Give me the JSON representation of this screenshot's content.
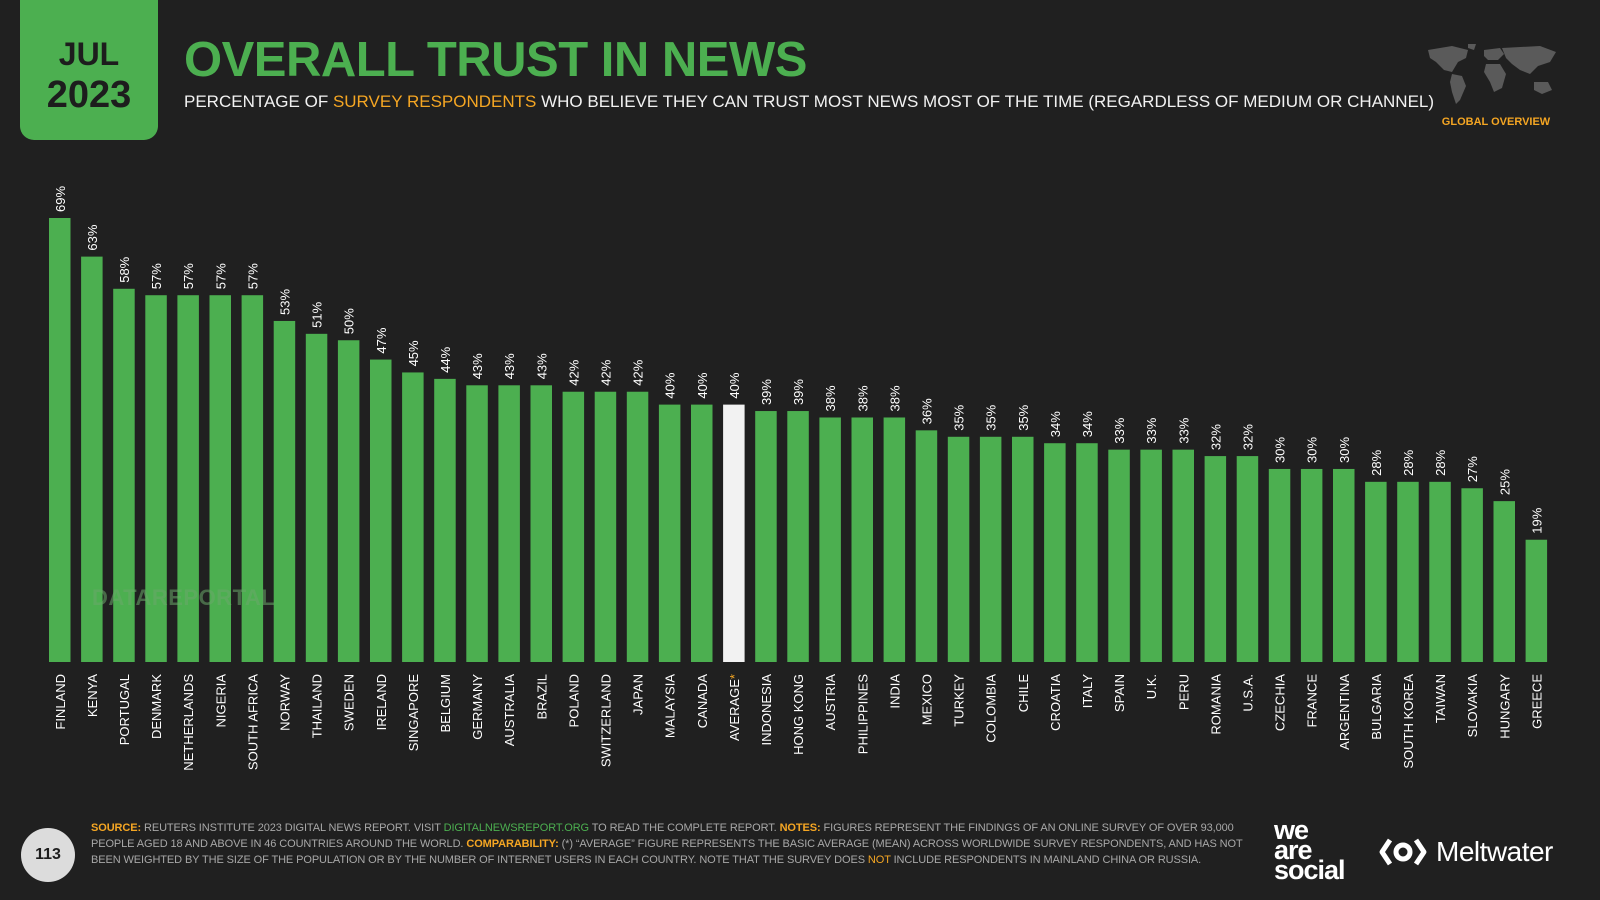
{
  "header": {
    "month": "JUL",
    "year": "2023",
    "title": "OVERALL TRUST IN NEWS",
    "subtitle_pre": "PERCENTAGE OF ",
    "subtitle_hl": "SURVEY RESPONDENTS",
    "subtitle_post": " WHO BELIEVE THEY CAN TRUST MOST NEWS MOST OF THE TIME (REGARDLESS OF MEDIUM OR CHANNEL)",
    "global_overview": "GLOBAL OVERVIEW"
  },
  "watermark": "DATAREPORTAL",
  "page_number": "113",
  "footer": {
    "source_label": "SOURCE:",
    "source_text_1": " REUTERS INSTITUTE 2023 DIGITAL NEWS REPORT. VISIT ",
    "source_link": "DIGITALNEWSREPORT.ORG",
    "source_text_2": " TO READ THE COMPLETE REPORT. ",
    "notes_label": "NOTES:",
    "notes_text": " FIGURES REPRESENT THE FINDINGS OF AN ONLINE SURVEY OF OVER 93,000 PEOPLE AGED 18 AND ABOVE IN 46 COUNTRIES AROUND THE WORLD. ",
    "comparability_label": "COMPARABILITY:",
    "comparability_text_1": " (*) “AVERAGE” FIGURE REPRESENTS THE BASIC AVERAGE (MEAN) ACROSS WORLDWIDE SURVEY RESPONDENTS, AND HAS NOT BEEN WEIGHTED BY THE SIZE OF THE POPULATION OR BY THE NUMBER OF INTERNET USERS IN EACH COUNTRY. NOTE THAT THE SURVEY DOES ",
    "comparability_not": "NOT",
    "comparability_text_2": " INCLUDE RESPONDENTS IN MAINLAND CHINA OR RUSSIA."
  },
  "logos": {
    "was_line1": "we",
    "was_line2": "are",
    "was_line3": "social",
    "meltwater": "Meltwater"
  },
  "colors": {
    "background": "#202020",
    "bar": "#4caf50",
    "average_bar": "#f2f2f2",
    "accent": "#f5a623"
  },
  "chart_data": {
    "type": "bar",
    "highlight_category": "AVERAGE",
    "average_marker": "*",
    "value_suffix": "%",
    "ylim": [
      0,
      69
    ],
    "categories": [
      "FINLAND",
      "KENYA",
      "PORTUGAL",
      "DENMARK",
      "NETHERLANDS",
      "NIGERIA",
      "SOUTH AFRICA",
      "NORWAY",
      "THAILAND",
      "SWEDEN",
      "IRELAND",
      "SINGAPORE",
      "BELGIUM",
      "GERMANY",
      "AUSTRALIA",
      "BRAZIL",
      "POLAND",
      "SWITZERLAND",
      "JAPAN",
      "MALAYSIA",
      "CANADA",
      "AVERAGE",
      "INDONESIA",
      "HONG KONG",
      "AUSTRIA",
      "PHILIPPINES",
      "INDIA",
      "MEXICO",
      "TURKEY",
      "COLOMBIA",
      "CHILE",
      "CROATIA",
      "ITALY",
      "SPAIN",
      "U.K.",
      "PERU",
      "ROMANIA",
      "U.S.A.",
      "CZECHIA",
      "FRANCE",
      "ARGENTINA",
      "BULGARIA",
      "SOUTH KOREA",
      "TAIWAN",
      "SLOVAKIA",
      "HUNGARY",
      "GREECE"
    ],
    "values": [
      69,
      63,
      58,
      57,
      57,
      57,
      57,
      53,
      51,
      50,
      47,
      45,
      44,
      43,
      43,
      43,
      42,
      42,
      42,
      40,
      40,
      40,
      39,
      39,
      38,
      38,
      38,
      36,
      35,
      35,
      35,
      34,
      34,
      33,
      33,
      33,
      32,
      32,
      30,
      30,
      30,
      28,
      28,
      28,
      27,
      25,
      19
    ]
  }
}
